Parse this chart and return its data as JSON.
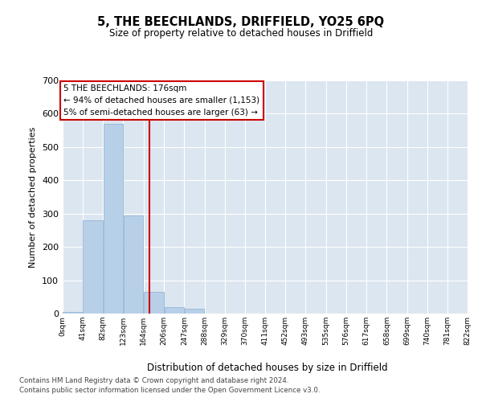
{
  "title": "5, THE BEECHLANDS, DRIFFIELD, YO25 6PQ",
  "subtitle": "Size of property relative to detached houses in Driffield",
  "xlabel": "Distribution of detached houses by size in Driffield",
  "ylabel": "Number of detached properties",
  "bin_edges": [
    0,
    41,
    82,
    123,
    164,
    206,
    247,
    288,
    329,
    370,
    411,
    452,
    493,
    535,
    576,
    617,
    658,
    699,
    740,
    781,
    822
  ],
  "bar_heights": [
    5,
    280,
    570,
    295,
    65,
    20,
    15,
    0,
    0,
    0,
    0,
    0,
    0,
    0,
    0,
    0,
    0,
    0,
    0,
    0
  ],
  "bar_color": "#b8cfe8",
  "bar_edge_color": "#8ab0d4",
  "property_size": 176,
  "vline_color": "#cc0000",
  "annotation_line1": "5 THE BEECHLANDS: 176sqm",
  "annotation_line2": "← 94% of detached houses are smaller (1,153)",
  "annotation_line3": "5% of semi-detached houses are larger (63) →",
  "annotation_box_edgecolor": "#cc0000",
  "background_color": "#dce6f0",
  "ylim": [
    0,
    700
  ],
  "yticks": [
    0,
    100,
    200,
    300,
    400,
    500,
    600,
    700
  ],
  "footer_line1": "Contains HM Land Registry data © Crown copyright and database right 2024.",
  "footer_line2": "Contains public sector information licensed under the Open Government Licence v3.0.",
  "tick_labels": [
    "0sqm",
    "41sqm",
    "82sqm",
    "123sqm",
    "164sqm",
    "206sqm",
    "247sqm",
    "288sqm",
    "329sqm",
    "370sqm",
    "411sqm",
    "452sqm",
    "493sqm",
    "535sqm",
    "576sqm",
    "617sqm",
    "658sqm",
    "699sqm",
    "740sqm",
    "781sqm",
    "822sqm"
  ]
}
